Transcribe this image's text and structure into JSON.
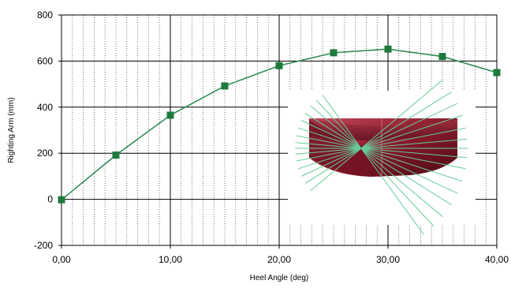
{
  "chart_data": {
    "type": "line",
    "title": "",
    "xlabel": "Heel Angle (deg)",
    "ylabel": "Righting Arm (mm)",
    "xlim": [
      0,
      40
    ],
    "ylim": [
      -200,
      800
    ],
    "x_ticks": [
      0,
      10,
      20,
      30,
      40
    ],
    "x_tick_labels": [
      "0,00",
      "10,00",
      "20,00",
      "30,00",
      "40,00"
    ],
    "y_ticks": [
      -200,
      0,
      200,
      400,
      600,
      800
    ],
    "y_tick_labels": [
      "-200",
      "0",
      "200",
      "400",
      "600",
      "800"
    ],
    "x_minor_step": 1,
    "grid": true,
    "legend": "none",
    "series": [
      {
        "x": [
          0,
          5,
          10,
          15,
          20,
          25,
          30,
          35,
          40
        ],
        "y": [
          -2,
          192,
          365,
          492,
          580,
          636,
          652,
          620,
          550
        ],
        "color": "#2e8b57",
        "marker_color": "#1e7a3c",
        "marker": "square"
      }
    ],
    "inset_image": {
      "description_icon": "hull-cross-section-illustration",
      "hull_color": "#8b1a2b",
      "waterline_color": "#66cc99"
    }
  }
}
